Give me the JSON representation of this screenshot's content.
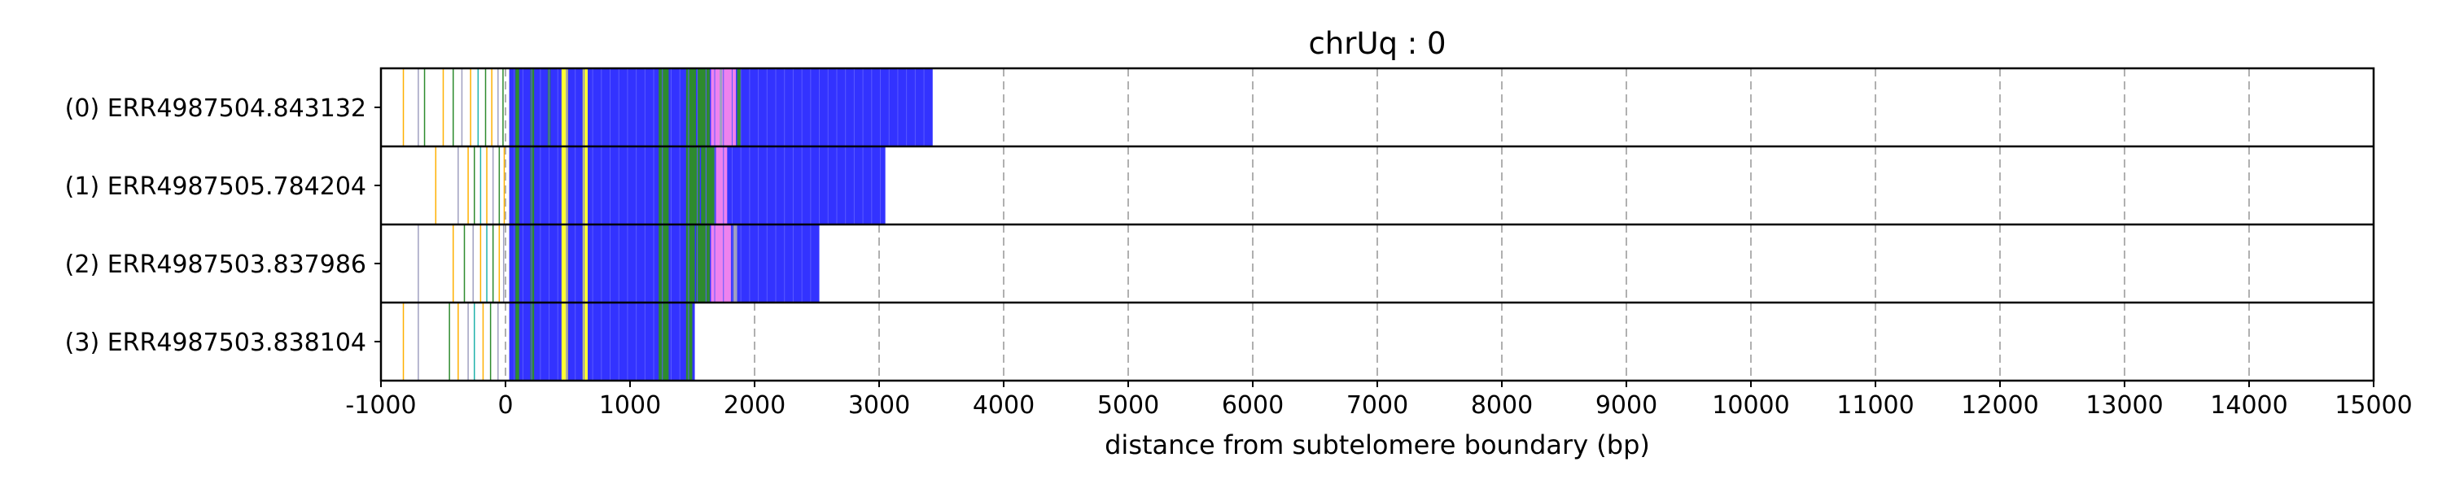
{
  "chart_data": {
    "type": "read-stack",
    "title": "chrUq : 0",
    "xlabel": "distance from subtelomere boundary (bp)",
    "xlim": [
      -1000,
      15000
    ],
    "xticks": [
      -1000,
      0,
      1000,
      2000,
      3000,
      4000,
      5000,
      6000,
      7000,
      8000,
      9000,
      10000,
      11000,
      12000,
      13000,
      14000,
      15000
    ],
    "grid": "vertical-dashed",
    "colors": {
      "blue": "#3333ff",
      "green": "#2e8b2e",
      "yellow": "#ffff33",
      "pink": "#ee82ee",
      "gray": "#a0a0c0",
      "orange": "#ffb000",
      "teal": "#20b2aa"
    },
    "reads": [
      {
        "label": "(0) ERR4987504.843132",
        "start": -1000,
        "end": 3430,
        "segments": [
          {
            "s": 30,
            "e": 3430,
            "c": "blue"
          },
          {
            "s": 80,
            "e": 110,
            "c": "green"
          },
          {
            "s": 200,
            "e": 230,
            "c": "green"
          },
          {
            "s": 340,
            "e": 360,
            "c": "green"
          },
          {
            "s": 450,
            "e": 500,
            "c": "yellow"
          },
          {
            "s": 620,
            "e": 660,
            "c": "yellow"
          },
          {
            "s": 1230,
            "e": 1310,
            "c": "green"
          },
          {
            "s": 1450,
            "e": 1530,
            "c": "green"
          },
          {
            "s": 1540,
            "e": 1640,
            "c": "green"
          },
          {
            "s": 1650,
            "e": 1850,
            "c": "pink"
          },
          {
            "s": 1720,
            "e": 1740,
            "c": "gray"
          },
          {
            "s": 1860,
            "e": 1890,
            "c": "green"
          }
        ],
        "sparse": [
          {
            "x": -820,
            "c": "orange"
          },
          {
            "x": -700,
            "c": "gray"
          },
          {
            "x": -650,
            "c": "green"
          },
          {
            "x": -500,
            "c": "orange"
          },
          {
            "x": -420,
            "c": "green"
          },
          {
            "x": -350,
            "c": "gray"
          },
          {
            "x": -280,
            "c": "orange"
          },
          {
            "x": -220,
            "c": "teal"
          },
          {
            "x": -160,
            "c": "green"
          },
          {
            "x": -110,
            "c": "orange"
          },
          {
            "x": -60,
            "c": "gray"
          },
          {
            "x": -20,
            "c": "green"
          }
        ]
      },
      {
        "label": "(1) ERR4987505.784204",
        "start": -1000,
        "end": 3050,
        "segments": [
          {
            "s": 30,
            "e": 3050,
            "c": "blue"
          },
          {
            "s": 80,
            "e": 110,
            "c": "green"
          },
          {
            "s": 200,
            "e": 230,
            "c": "green"
          },
          {
            "s": 450,
            "e": 500,
            "c": "yellow"
          },
          {
            "s": 620,
            "e": 660,
            "c": "yellow"
          },
          {
            "s": 1230,
            "e": 1310,
            "c": "green"
          },
          {
            "s": 1450,
            "e": 1560,
            "c": "green"
          },
          {
            "s": 1570,
            "e": 1680,
            "c": "green"
          },
          {
            "s": 1690,
            "e": 1780,
            "c": "pink"
          }
        ],
        "sparse": [
          {
            "x": -560,
            "c": "orange"
          },
          {
            "x": -380,
            "c": "gray"
          },
          {
            "x": -300,
            "c": "orange"
          },
          {
            "x": -250,
            "c": "green"
          },
          {
            "x": -200,
            "c": "teal"
          },
          {
            "x": -150,
            "c": "orange"
          },
          {
            "x": -100,
            "c": "gray"
          },
          {
            "x": -50,
            "c": "green"
          },
          {
            "x": -10,
            "c": "orange"
          }
        ]
      },
      {
        "label": "(2) ERR4987503.837986",
        "start": -1000,
        "end": 2520,
        "segments": [
          {
            "s": 30,
            "e": 2520,
            "c": "blue"
          },
          {
            "s": 80,
            "e": 110,
            "c": "green"
          },
          {
            "s": 200,
            "e": 230,
            "c": "green"
          },
          {
            "s": 450,
            "e": 500,
            "c": "yellow"
          },
          {
            "s": 620,
            "e": 660,
            "c": "yellow"
          },
          {
            "s": 1230,
            "e": 1310,
            "c": "green"
          },
          {
            "s": 1450,
            "e": 1520,
            "c": "green"
          },
          {
            "s": 1530,
            "e": 1640,
            "c": "green"
          },
          {
            "s": 1650,
            "e": 1810,
            "c": "pink"
          },
          {
            "s": 1830,
            "e": 1860,
            "c": "gray"
          }
        ],
        "sparse": [
          {
            "x": -700,
            "c": "gray"
          },
          {
            "x": -420,
            "c": "orange"
          },
          {
            "x": -330,
            "c": "green"
          },
          {
            "x": -260,
            "c": "gray"
          },
          {
            "x": -200,
            "c": "orange"
          },
          {
            "x": -150,
            "c": "teal"
          },
          {
            "x": -100,
            "c": "green"
          },
          {
            "x": -50,
            "c": "orange"
          },
          {
            "x": -15,
            "c": "gray"
          }
        ]
      },
      {
        "label": "(3) ERR4987503.838104",
        "start": -1000,
        "end": 1520,
        "segments": [
          {
            "s": 30,
            "e": 1520,
            "c": "blue"
          },
          {
            "s": 80,
            "e": 110,
            "c": "green"
          },
          {
            "s": 200,
            "e": 230,
            "c": "green"
          },
          {
            "s": 450,
            "e": 500,
            "c": "yellow"
          },
          {
            "s": 620,
            "e": 660,
            "c": "yellow"
          },
          {
            "s": 1230,
            "e": 1310,
            "c": "green"
          },
          {
            "s": 1450,
            "e": 1500,
            "c": "green"
          }
        ],
        "sparse": [
          {
            "x": -820,
            "c": "orange"
          },
          {
            "x": -700,
            "c": "gray"
          },
          {
            "x": -450,
            "c": "green"
          },
          {
            "x": -380,
            "c": "orange"
          },
          {
            "x": -300,
            "c": "gray"
          },
          {
            "x": -250,
            "c": "teal"
          },
          {
            "x": -180,
            "c": "orange"
          },
          {
            "x": -120,
            "c": "green"
          },
          {
            "x": -60,
            "c": "gray"
          }
        ]
      }
    ]
  }
}
